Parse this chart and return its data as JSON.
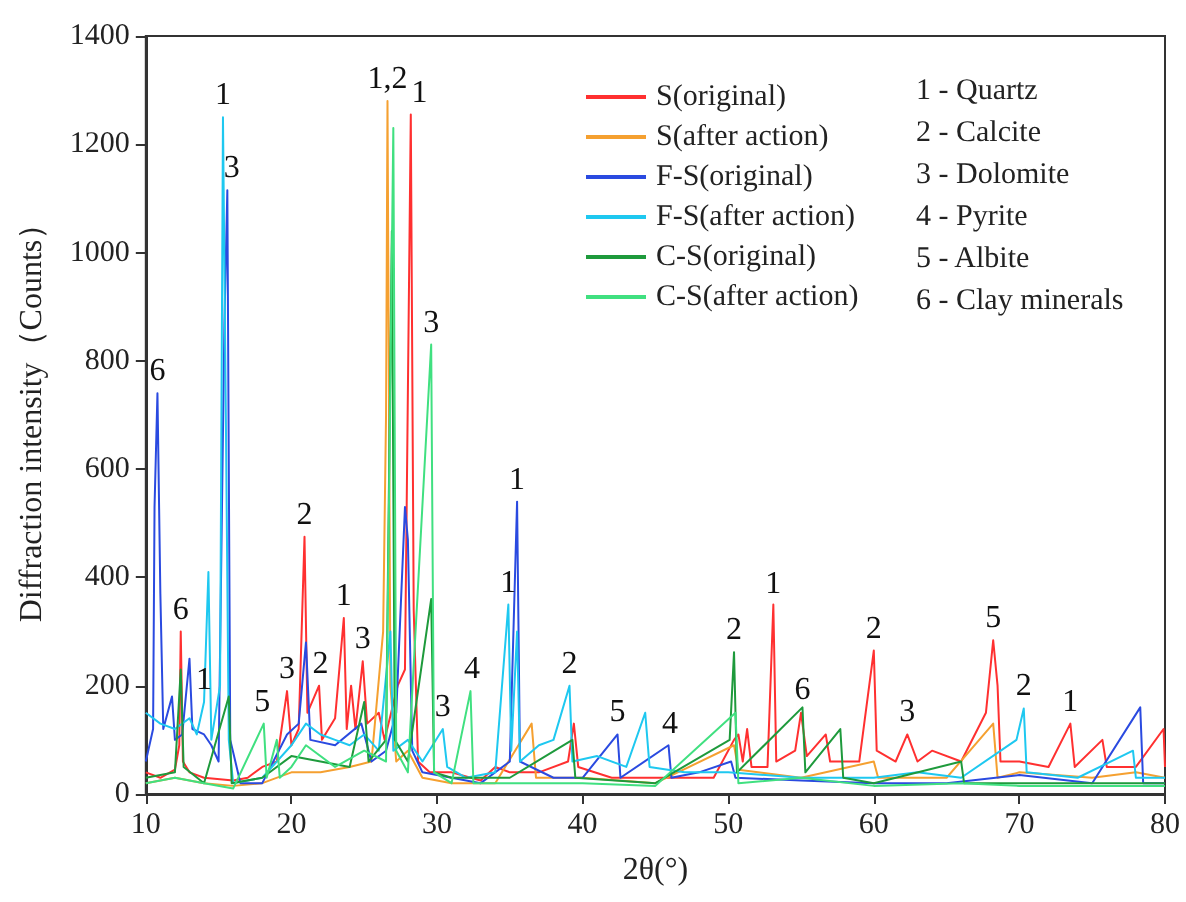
{
  "chart_data": {
    "type": "line",
    "xlabel": "2θ(°)",
    "ylabel": "Diffraction intensity（Counts）",
    "xlim": [
      10,
      80
    ],
    "xticks": [
      10,
      20,
      30,
      40,
      50,
      60,
      70,
      80
    ],
    "ylim": [
      0,
      1400
    ],
    "yticks": [
      0,
      200,
      400,
      600,
      800,
      1000,
      1200,
      1400
    ],
    "grid": false,
    "legend": "top right",
    "series": [
      {
        "name": "S(original)",
        "color": "#ff3030",
        "x": [
          10,
          11,
          12,
          12.3,
          12.4,
          12.55,
          13,
          14,
          16,
          17,
          18,
          19,
          19.7,
          20,
          20.5,
          20.9,
          21.1,
          21.9,
          22.1,
          23,
          23.6,
          23.8,
          24.1,
          24.4,
          24.9,
          25.2,
          26,
          26.4,
          27.3,
          27.8,
          28.2,
          28.4,
          28.7,
          29.5,
          31,
          33,
          34,
          35,
          37,
          39,
          39.4,
          39.7,
          42,
          46,
          49,
          50.4,
          50.7,
          51,
          51.3,
          51.6,
          52.7,
          53.1,
          53.3,
          54.6,
          55,
          55.4,
          56.7,
          57,
          59,
          60,
          60.2,
          61.5,
          62.3,
          63,
          64,
          66,
          67.7,
          68.2,
          68.5,
          68.7,
          70,
          72,
          73.5,
          73.8,
          75.7,
          76,
          78,
          79.9,
          80
        ],
        "values": [
          40,
          30,
          45,
          90,
          300,
          60,
          40,
          30,
          25,
          30,
          50,
          60,
          190,
          90,
          120,
          475,
          150,
          200,
          100,
          140,
          325,
          120,
          200,
          120,
          245,
          130,
          150,
          100,
          200,
          230,
          1255,
          340,
          60,
          40,
          40,
          25,
          50,
          40,
          40,
          60,
          130,
          50,
          30,
          30,
          30,
          100,
          110,
          60,
          120,
          50,
          50,
          350,
          60,
          80,
          150,
          70,
          110,
          60,
          60,
          265,
          80,
          60,
          110,
          60,
          80,
          60,
          150,
          284,
          200,
          60,
          60,
          50,
          130,
          50,
          100,
          50,
          50,
          120,
          50
        ]
      },
      {
        "name": "S(after action)",
        "color": "#f5a030",
        "x": [
          10,
          12,
          14,
          16,
          18,
          20,
          22,
          24,
          25.5,
          26.3,
          26.5,
          26.6,
          26.8,
          27.2,
          28,
          29,
          31,
          34,
          36.5,
          36.8,
          40,
          45,
          50.4,
          50.7,
          55,
          60,
          60.3,
          65,
          68.2,
          68.5,
          70,
          75,
          78,
          80
        ],
        "values": [
          20,
          30,
          20,
          15,
          20,
          40,
          40,
          50,
          60,
          300,
          700,
          1280,
          200,
          60,
          80,
          30,
          20,
          20,
          130,
          30,
          30,
          20,
          90,
          45,
          30,
          60,
          30,
          30,
          130,
          30,
          40,
          30,
          40,
          30
        ]
      },
      {
        "name": "F-S(original)",
        "color": "#2a4ae0",
        "x": [
          10,
          10.5,
          10.6,
          10.8,
          11,
          11.2,
          11.8,
          12,
          12.5,
          13,
          13.2,
          14,
          14.5,
          15,
          15.4,
          15.6,
          15.8,
          16.5,
          18,
          19.7,
          20.5,
          21,
          21.3,
          23,
          24.8,
          25.5,
          26.5,
          27.2,
          27.8,
          28,
          28.3,
          29,
          31,
          33,
          35,
          35.5,
          35.7,
          38,
          40,
          42.4,
          42.6,
          45.9,
          46.1,
          48,
          50.2,
          50.5,
          55,
          60,
          65,
          70,
          75,
          78.3,
          78.5,
          80
        ],
        "values": [
          60,
          120,
          530,
          740,
          370,
          120,
          180,
          100,
          110,
          250,
          120,
          110,
          90,
          60,
          870,
          1115,
          100,
          20,
          20,
          110,
          130,
          280,
          100,
          90,
          130,
          60,
          80,
          150,
          530,
          470,
          80,
          40,
          30,
          20,
          60,
          540,
          60,
          30,
          30,
          110,
          30,
          90,
          30,
          40,
          60,
          30,
          25,
          20,
          20,
          35,
          20,
          160,
          20,
          20
        ]
      },
      {
        "name": "F-S(after action)",
        "color": "#1ec8f0",
        "x": [
          10,
          11,
          12,
          13,
          13.5,
          14,
          14.3,
          14.5,
          15.1,
          15.3,
          15.5,
          15.7,
          16,
          18,
          20,
          21,
          22,
          23,
          24,
          25,
          26,
          26.8,
          27,
          28,
          29,
          30.4,
          30.7,
          32,
          34,
          34.9,
          35.1,
          35.5,
          35.7,
          37,
          38,
          39.1,
          39.3,
          41,
          43,
          44.3,
          44.6,
          47,
          50,
          55,
          60,
          63,
          66,
          69.8,
          70.3,
          70.5,
          74,
          77.8,
          78,
          80
        ],
        "values": [
          150,
          130,
          120,
          140,
          110,
          170,
          410,
          100,
          200,
          1250,
          690,
          100,
          20,
          30,
          90,
          130,
          110,
          100,
          90,
          110,
          80,
          300,
          80,
          100,
          60,
          120,
          50,
          30,
          40,
          350,
          80,
          300,
          60,
          90,
          100,
          200,
          60,
          70,
          50,
          150,
          50,
          40,
          40,
          30,
          30,
          40,
          30,
          100,
          158,
          40,
          30,
          80,
          30,
          30
        ]
      },
      {
        "name": "C-S(original)",
        "color": "#1e9a3c",
        "x": [
          10,
          12,
          12.4,
          12.6,
          14,
          15.7,
          15.9,
          18,
          20,
          22,
          24,
          25,
          25.3,
          26.5,
          26.9,
          27.1,
          28,
          29.6,
          29.8,
          31,
          35,
          39.3,
          39.5,
          45,
          50.1,
          50.4,
          50.6,
          55.1,
          55.3,
          57.7,
          57.9,
          60,
          66,
          66.2,
          70,
          75,
          80
        ],
        "values": [
          30,
          40,
          230,
          50,
          20,
          180,
          20,
          30,
          70,
          60,
          50,
          170,
          60,
          100,
          1040,
          100,
          60,
          360,
          40,
          30,
          30,
          100,
          30,
          20,
          100,
          262,
          40,
          160,
          40,
          120,
          30,
          20,
          60,
          20,
          20,
          20,
          20
        ]
      },
      {
        "name": "C-S(after action)",
        "color": "#40e080",
        "x": [
          10,
          12,
          14,
          16,
          18.1,
          18.3,
          19,
          19.2,
          20,
          21,
          23,
          25,
          26.5,
          27,
          27.2,
          28,
          29.6,
          29.8,
          31,
          32.3,
          32.5,
          36,
          40,
          45,
          50.5,
          50.7,
          55,
          60,
          66,
          70,
          75,
          80
        ],
        "values": [
          20,
          30,
          20,
          10,
          130,
          30,
          100,
          30,
          50,
          90,
          50,
          80,
          60,
          1230,
          80,
          40,
          830,
          40,
          20,
          190,
          20,
          20,
          20,
          15,
          150,
          20,
          30,
          15,
          20,
          15,
          15,
          15
        ]
      }
    ],
    "annotations": [
      {
        "text": "6",
        "x": 10.8,
        "y": 740
      },
      {
        "text": "6",
        "x": 12.4,
        "y": 300
      },
      {
        "text": "1",
        "x": 14,
        "y": 170
      },
      {
        "text": "1",
        "x": 15.3,
        "y": 1250
      },
      {
        "text": "3",
        "x": 15.9,
        "y": 1115
      },
      {
        "text": "5",
        "x": 18,
        "y": 130
      },
      {
        "text": "3",
        "x": 19.7,
        "y": 190
      },
      {
        "text": "2",
        "x": 20.9,
        "y": 475
      },
      {
        "text": "2",
        "x": 22,
        "y": 200
      },
      {
        "text": "1",
        "x": 23.6,
        "y": 325
      },
      {
        "text": "3",
        "x": 24.9,
        "y": 245
      },
      {
        "text": "1,2",
        "x": 26.6,
        "y": 1280
      },
      {
        "text": "1",
        "x": 28.8,
        "y": 1255
      },
      {
        "text": "3",
        "x": 29.6,
        "y": 830
      },
      {
        "text": "3",
        "x": 30.4,
        "y": 120
      },
      {
        "text": "4",
        "x": 32.4,
        "y": 190
      },
      {
        "text": "1",
        "x": 34.9,
        "y": 350
      },
      {
        "text": "1",
        "x": 35.5,
        "y": 540
      },
      {
        "text": "2",
        "x": 39.1,
        "y": 200
      },
      {
        "text": "5",
        "x": 42.4,
        "y": 110
      },
      {
        "text": "4",
        "x": 46,
        "y": 88
      },
      {
        "text": "2",
        "x": 50.4,
        "y": 262
      },
      {
        "text": "1",
        "x": 53.1,
        "y": 347
      },
      {
        "text": "6",
        "x": 55.1,
        "y": 151
      },
      {
        "text": "2",
        "x": 60,
        "y": 265
      },
      {
        "text": "3",
        "x": 62.3,
        "y": 110
      },
      {
        "text": "5",
        "x": 68.2,
        "y": 284
      },
      {
        "text": "2",
        "x": 70.3,
        "y": 158
      },
      {
        "text": "1",
        "x": 73.5,
        "y": 129
      },
      "1 - Quartz",
      "2 - Calcite",
      "3 - Dolomite",
      "4 - Pyrite",
      "5 - Albite",
      "6 - Clay minerals"
    ]
  }
}
